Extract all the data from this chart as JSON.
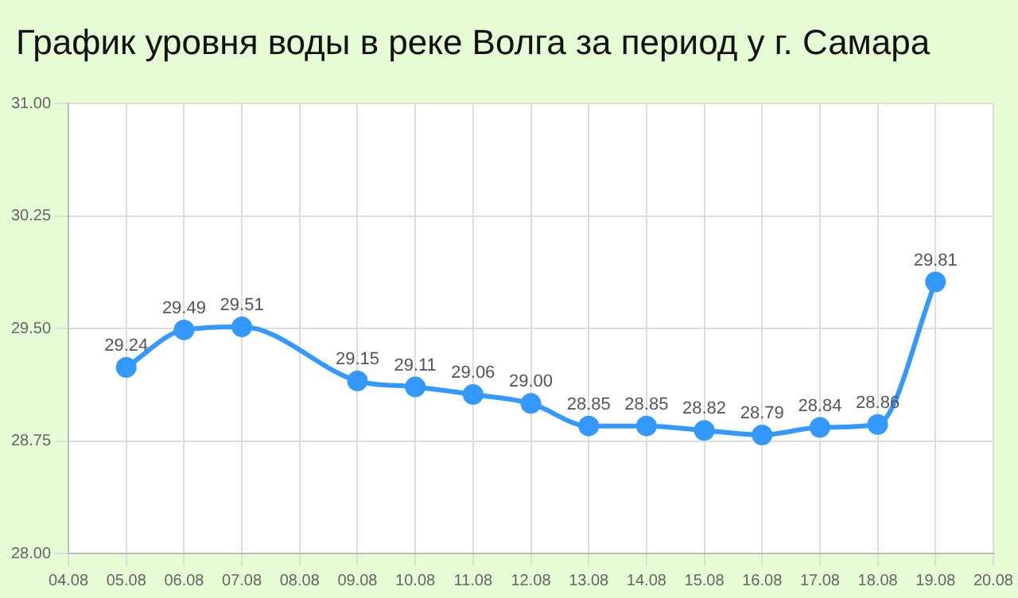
{
  "chart_data": {
    "type": "line",
    "title": "График уровня воды в реке Волга за период у г. Самара",
    "x": [
      "--08-05",
      "--08-06",
      "--08-07",
      "--08-09",
      "--08-10",
      "--08-11",
      "--08-12",
      "--08-13",
      "--08-14",
      "--08-15",
      "--08-16",
      "--08-17",
      "--08-18",
      "--08-19"
    ],
    "series": [
      {
        "color": "#3399ff",
        "values": [
          29.24,
          29.49,
          29.51,
          29.15,
          29.11,
          29.06,
          29.0,
          28.85,
          28.85,
          28.82,
          28.79,
          28.84,
          28.86,
          29.81
        ],
        "value_labels": [
          "29.24",
          "29.49",
          "29.51",
          "29.15",
          "29.11",
          "29.06",
          "29.00",
          "28.85",
          "28.85",
          "28.82",
          "28.79",
          "28.84",
          "28.86",
          "29.81"
        ]
      }
    ],
    "xlim": [
      "--08-04",
      "--08-20"
    ],
    "xticks": [
      {
        "value": "--08-04",
        "label": "04.08"
      },
      {
        "value": "--08-05",
        "label": "05.08"
      },
      {
        "value": "--08-06",
        "label": "06.08"
      },
      {
        "value": "--08-07",
        "label": "07.08"
      },
      {
        "value": "--08-08",
        "label": "08.08"
      },
      {
        "value": "--08-09",
        "label": "09.08"
      },
      {
        "value": "--08-10",
        "label": "10.08"
      },
      {
        "value": "--08-11",
        "label": "11.08"
      },
      {
        "value": "--08-12",
        "label": "12.08"
      },
      {
        "value": "--08-13",
        "label": "13.08"
      },
      {
        "value": "--08-14",
        "label": "14.08"
      },
      {
        "value": "--08-15",
        "label": "15.08"
      },
      {
        "value": "--08-16",
        "label": "16.08"
      },
      {
        "value": "--08-17",
        "label": "17.08"
      },
      {
        "value": "--08-18",
        "label": "18.08"
      },
      {
        "value": "--08-19",
        "label": "19.08"
      },
      {
        "value": "--08-20",
        "label": "20.08"
      }
    ],
    "ylim": [
      28,
      31
    ],
    "yticks": [
      {
        "value": 28,
        "label": "28.00"
      },
      {
        "value": 28.75,
        "label": "28.75"
      },
      {
        "value": 29.5,
        "label": "29.50"
      },
      {
        "value": 30.25,
        "label": "30.25"
      },
      {
        "value": 31,
        "label": "31.00"
      }
    ],
    "grid": true,
    "legend": false,
    "marker": "circle",
    "line_style": "solid"
  }
}
